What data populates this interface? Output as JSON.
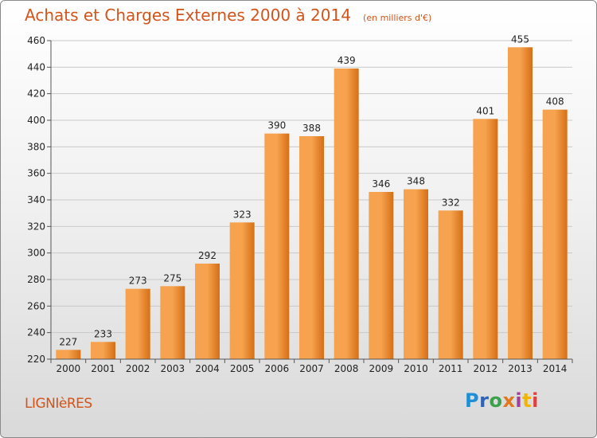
{
  "title": "Achats et Charges Externes 2000 à 2014",
  "unit": "(en milliers d'€)",
  "commune": "LIGNIèRES",
  "logo": {
    "letters": [
      "P",
      "r",
      "o",
      "x",
      "i",
      "t",
      "i"
    ],
    "colors": [
      "#1e8fd6",
      "#2d63b8",
      "#39a24a",
      "#e07820",
      "#a23f9a",
      "#f2b400",
      "#e04040"
    ]
  },
  "colors": {
    "bar_light": "#f6a24e",
    "bar_dark": "#d56f16",
    "title": "#d2541a"
  },
  "chart_data": {
    "type": "bar",
    "title": "Achats et Charges Externes 2000 à 2014",
    "subtitle": "(en milliers d'€)",
    "categories": [
      "2000",
      "2001",
      "2002",
      "2003",
      "2004",
      "2005",
      "2006",
      "2007",
      "2008",
      "2009",
      "2010",
      "2011",
      "2012",
      "2013",
      "2014"
    ],
    "values": [
      227,
      233,
      273,
      275,
      292,
      323,
      390,
      388,
      439,
      346,
      348,
      332,
      401,
      455,
      408
    ],
    "ylim": [
      220,
      460
    ],
    "yticks": [
      220,
      240,
      260,
      280,
      300,
      320,
      340,
      360,
      380,
      400,
      420,
      440,
      460
    ],
    "grid": true,
    "xlabel": "",
    "ylabel": ""
  }
}
